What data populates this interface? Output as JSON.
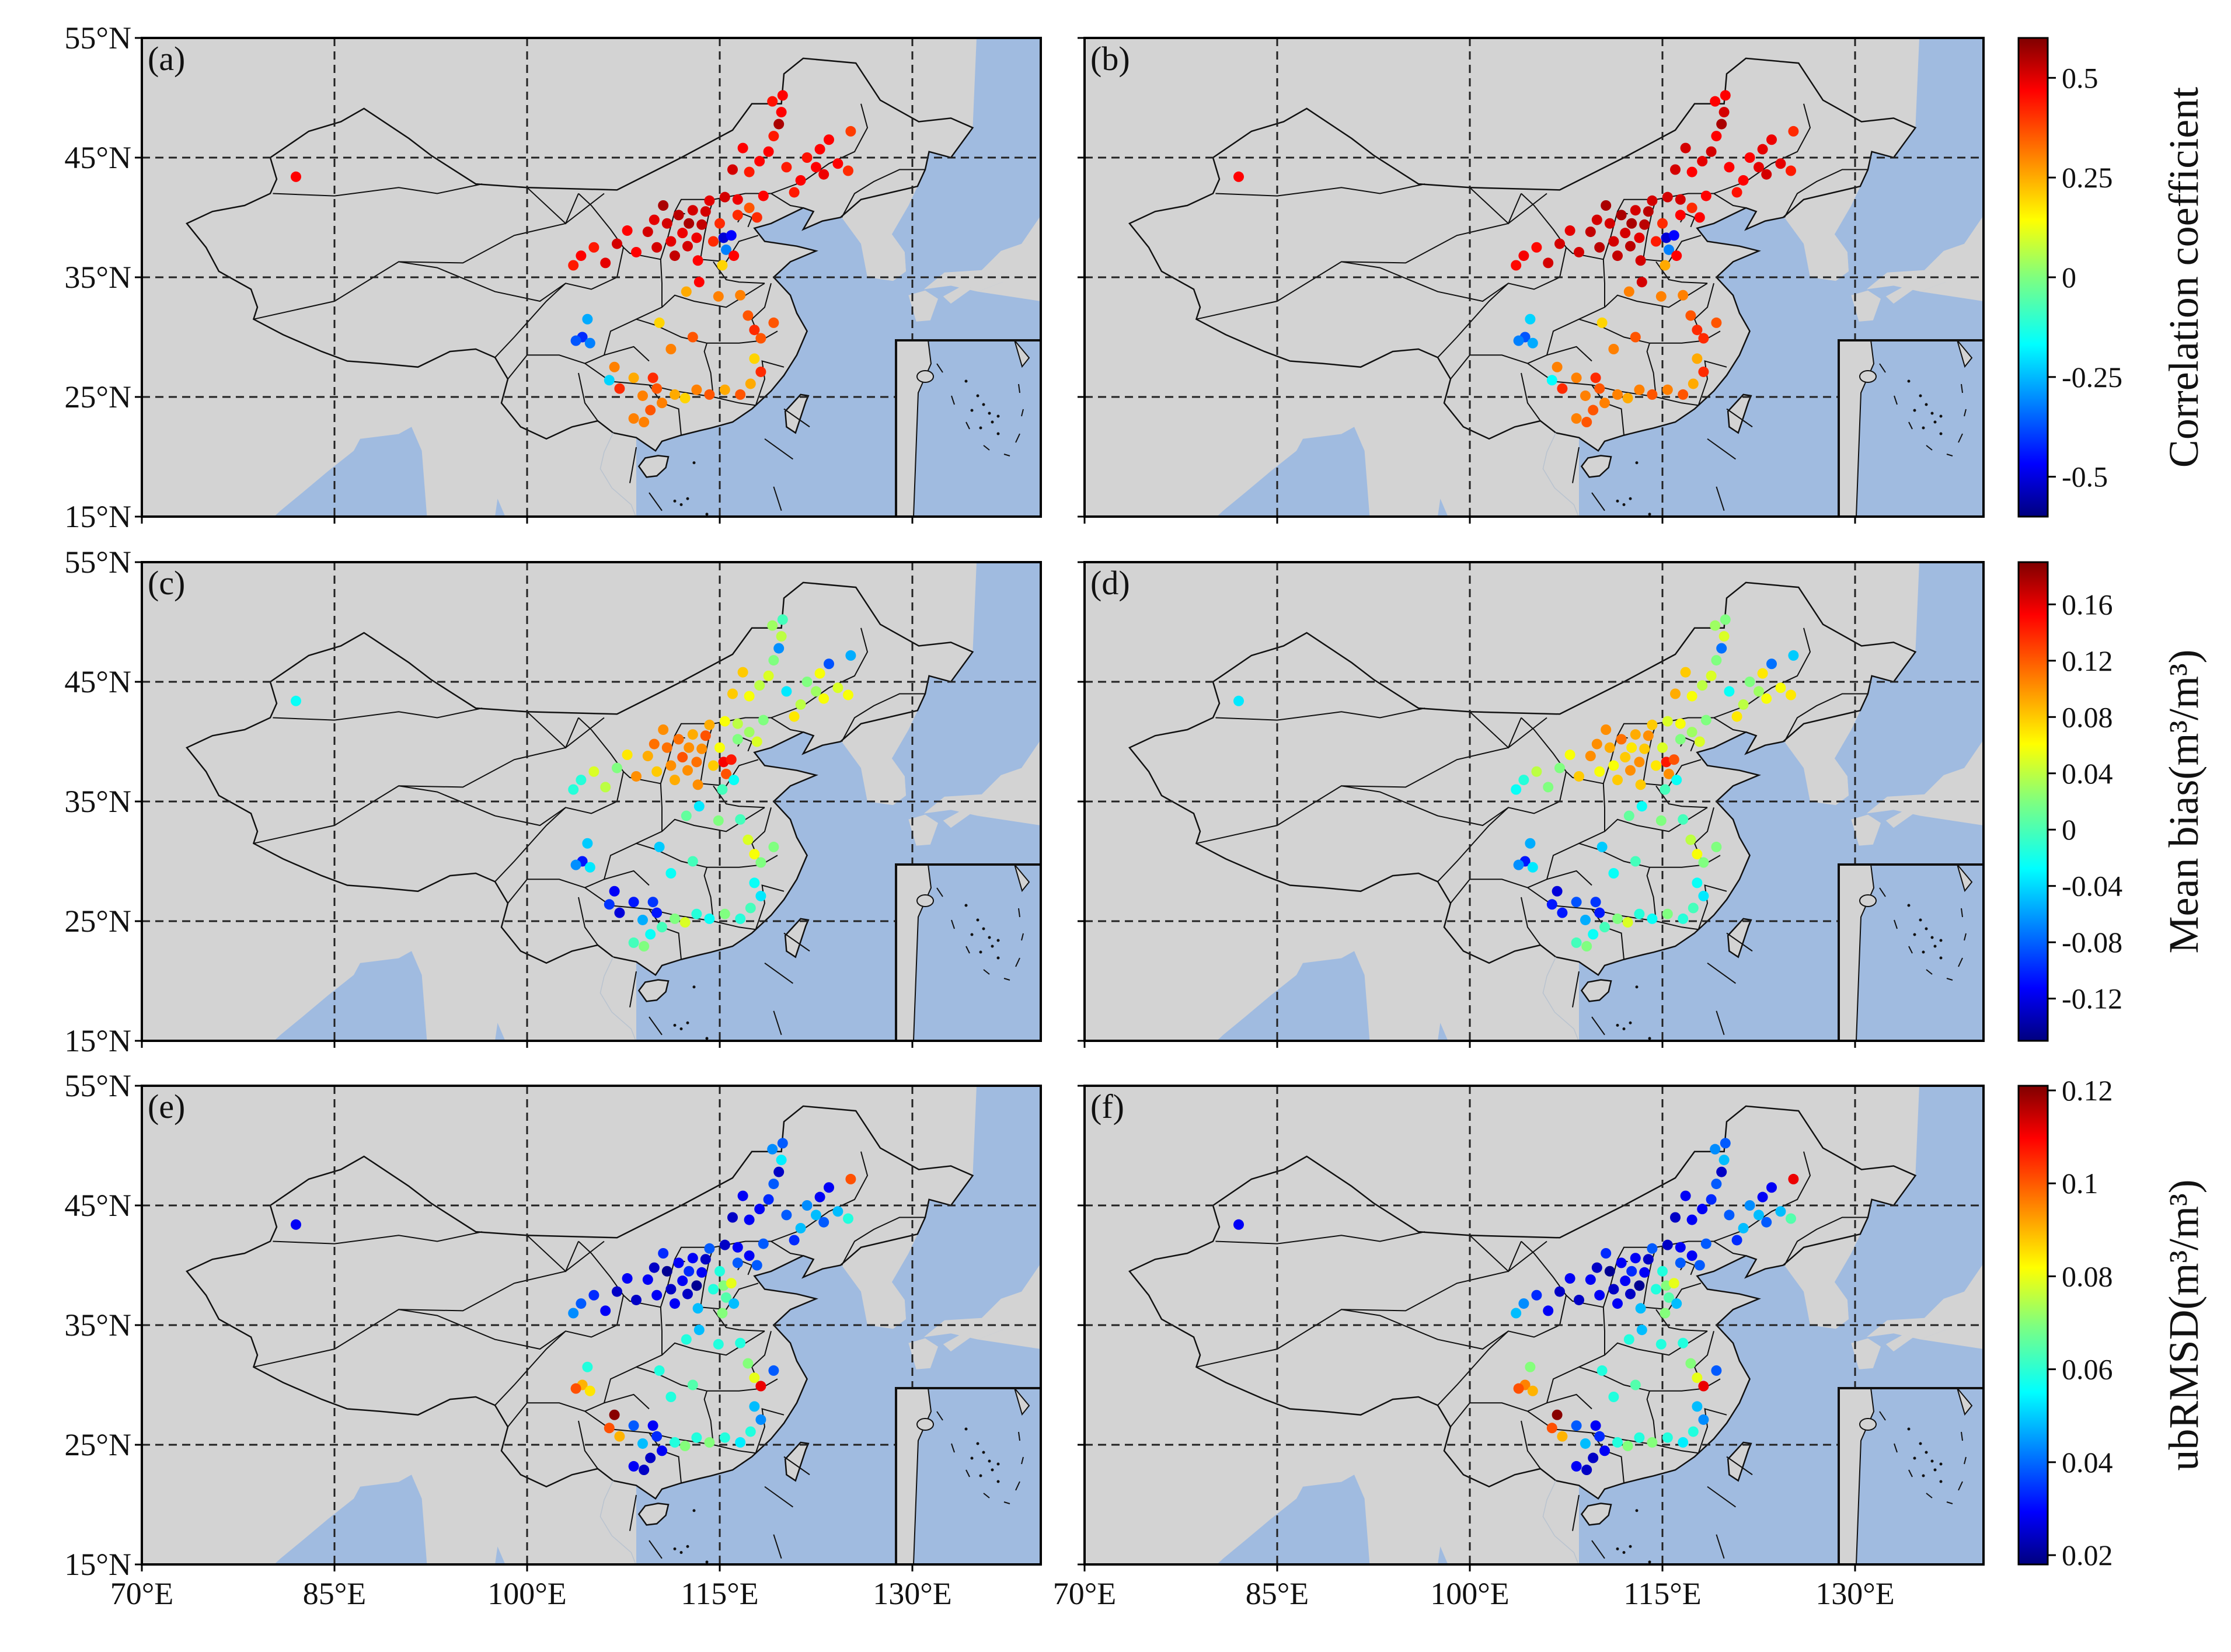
{
  "figure": {
    "panels": [
      {
        "label": "(a)",
        "row": 0,
        "col": 0
      },
      {
        "label": "(b)",
        "row": 0,
        "col": 1
      },
      {
        "label": "(c)",
        "row": 1,
        "col": 0
      },
      {
        "label": "(d)",
        "row": 1,
        "col": 1
      },
      {
        "label": "(e)",
        "row": 2,
        "col": 0
      },
      {
        "label": "(f)",
        "row": 2,
        "col": 1
      }
    ],
    "lat_ticks": [
      "55°N",
      "45°N",
      "35°N",
      "25°N",
      "15°N"
    ],
    "lon_ticks": [
      "70°E",
      "85°E",
      "100°E",
      "115°E",
      "130°E"
    ],
    "colorbars": [
      {
        "label": "Correlation coefficient",
        "ticks": [
          "0.5",
          "0.25",
          "0",
          "-0.25",
          "-0.5"
        ],
        "range": [
          -0.6,
          0.6
        ]
      },
      {
        "label": "Mean bias(m³/m³)",
        "ticks": [
          "0.16",
          "0.12",
          "0.08",
          "0.04",
          "0",
          "-0.04",
          "-0.08",
          "-0.12"
        ],
        "range": [
          -0.15,
          0.19
        ]
      },
      {
        "label": "ubRMSD(m³/m³)",
        "ticks": [
          "0.12",
          "0.1",
          "0.08",
          "0.06",
          "0.04",
          "0.02"
        ],
        "range": [
          0.018,
          0.121
        ]
      }
    ],
    "colors": {
      "land": "#d3d3d3",
      "sea": "#a0bbe0",
      "border": "#111111",
      "grid": "#222222"
    },
    "colormap": "jet"
  }
}
